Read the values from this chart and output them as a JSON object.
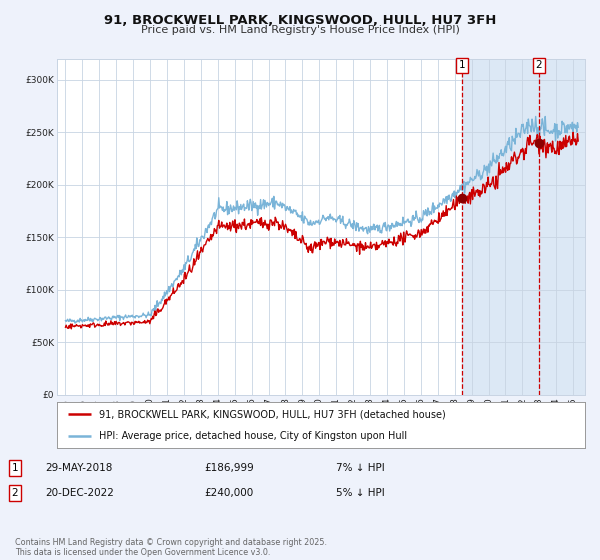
{
  "title": "91, BROCKWELL PARK, KINGSWOOD, HULL, HU7 3FH",
  "subtitle": "Price paid vs. HM Land Registry's House Price Index (HPI)",
  "legend_line1": "91, BROCKWELL PARK, KINGSWOOD, HULL, HU7 3FH (detached house)",
  "legend_line2": "HPI: Average price, detached house, City of Kingston upon Hull",
  "note1_label": "1",
  "note1_date": "29-MAY-2018",
  "note1_price": "£186,999",
  "note1_hpi": "7% ↓ HPI",
  "note2_label": "2",
  "note2_date": "20-DEC-2022",
  "note2_price": "£240,000",
  "note2_hpi": "5% ↓ HPI",
  "copyright": "Contains HM Land Registry data © Crown copyright and database right 2025.\nThis data is licensed under the Open Government Licence v3.0.",
  "hpi_color": "#7ab4d8",
  "price_color": "#cc0000",
  "marker_color": "#8b0000",
  "marker1_x": 2018.42,
  "marker1_y": 186999,
  "marker2_x": 2022.97,
  "marker2_y": 240000,
  "vline1_x": 2018.42,
  "vline2_x": 2022.97,
  "shade_start": 2018.42,
  "ylim": [
    0,
    320000
  ],
  "xlim_start": 1994.5,
  "xlim_end": 2025.7,
  "background_color": "#eef2fb",
  "plot_bg": "#ffffff",
  "shade_color": "#dce8f5",
  "grid_color": "#c8d4e3",
  "spine_color": "#c8d4e3"
}
